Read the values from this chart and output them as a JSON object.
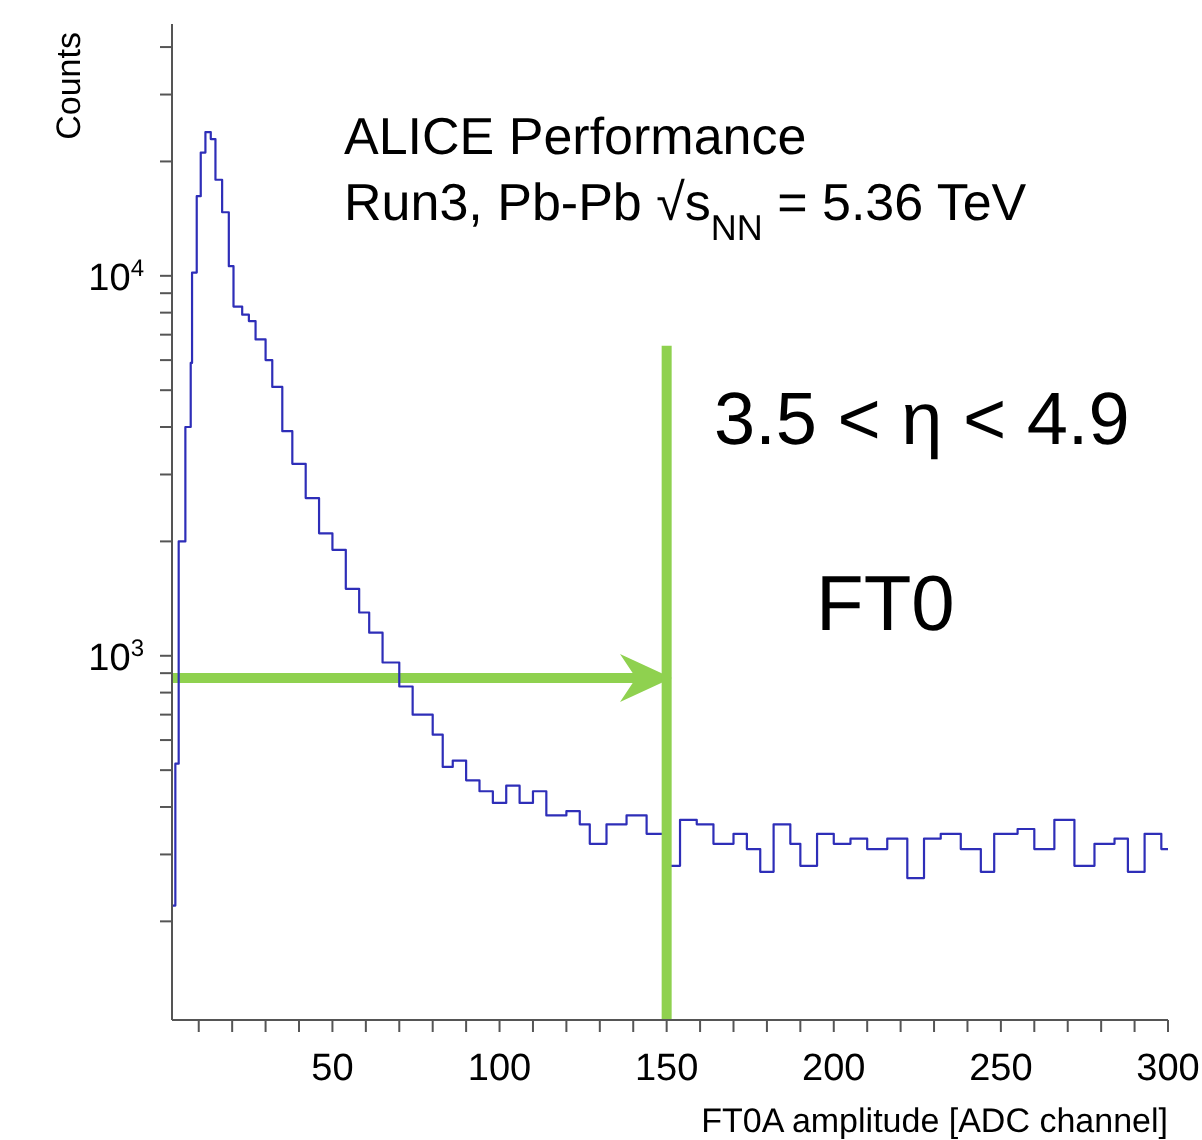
{
  "chart_data": {
    "type": "histogram",
    "xlabel": "FT0A amplitude [ADC channel]",
    "ylabel": "Counts",
    "annotations": [
      "ALICE Performance",
      "Run3, Pb-Pb √s$_{NN}$ = 5.36 TeV",
      "3.5 < η < 4.9",
      "FT0"
    ],
    "color": "#2e2eb8",
    "log": "y",
    "legend": false,
    "grid": false,
    "bins": [
      2,
      3,
      4,
      6,
      7.6,
      8,
      9.4,
      10.6,
      12,
      13.6,
      15,
      17,
      19,
      20.4,
      23,
      25,
      27,
      30,
      32,
      35,
      38,
      42,
      46,
      50,
      54,
      58,
      61,
      65,
      70,
      74,
      80,
      83,
      86,
      90,
      94,
      98,
      102,
      106,
      110,
      114,
      120,
      124,
      127,
      132,
      138,
      144,
      149,
      154,
      159,
      164,
      170,
      174,
      178,
      182,
      187,
      190,
      195,
      200,
      205,
      210,
      216,
      222,
      227,
      232,
      238,
      244,
      248,
      255,
      260,
      266,
      272,
      278,
      284,
      288,
      293,
      298,
      300
    ],
    "values": [
      220,
      520,
      2000,
      4000,
      5900,
      10200,
      16200,
      21100,
      23900,
      22900,
      17900,
      14700,
      10600,
      8300,
      7900,
      7600,
      6800,
      6000,
      5100,
      3900,
      3200,
      2600,
      2100,
      1900,
      1500,
      1300,
      1150,
      960,
      830,
      700,
      620,
      510,
      530,
      470,
      440,
      410,
      455,
      410,
      440,
      380,
      390,
      360,
      320,
      360,
      380,
      340,
      280,
      370,
      360,
      320,
      340,
      310,
      270,
      360,
      320,
      280,
      340,
      320,
      330,
      310,
      330,
      260,
      330,
      340,
      310,
      270,
      340,
      350,
      310,
      370,
      280,
      320,
      330,
      270,
      340,
      310
    ],
    "xlim": [
      2,
      300
    ],
    "xticks": [
      {
        "value": 10,
        "label": null
      },
      {
        "value": 20,
        "label": null
      },
      {
        "value": 30,
        "label": null
      },
      {
        "value": 40,
        "label": null
      },
      50,
      {
        "value": 60,
        "label": null
      },
      {
        "value": 70,
        "label": null
      },
      {
        "value": 80,
        "label": null
      },
      {
        "value": 90,
        "label": null
      },
      100,
      {
        "value": 110,
        "label": null
      },
      {
        "value": 120,
        "label": null
      },
      {
        "value": 130,
        "label": null
      },
      {
        "value": 140,
        "label": null
      },
      150,
      {
        "value": 160,
        "label": null
      },
      {
        "value": 170,
        "label": null
      },
      {
        "value": 180,
        "label": null
      },
      {
        "value": 190,
        "label": null
      },
      200,
      {
        "value": 210,
        "label": null
      },
      {
        "value": 220,
        "label": null
      },
      {
        "value": 230,
        "label": null
      },
      {
        "value": 240,
        "label": null
      },
      250,
      {
        "value": 260,
        "label": null
      },
      {
        "value": 270,
        "label": null
      },
      {
        "value": 280,
        "label": null
      },
      {
        "value": 290,
        "label": null
      },
      300
    ],
    "ylim": [
      110,
      46000
    ],
    "yticks": [
      {
        "value": 200,
        "label": null
      },
      {
        "value": 300,
        "label": null
      },
      {
        "value": 400,
        "label": null
      },
      {
        "value": 500,
        "label": null
      },
      {
        "value": 600,
        "label": null
      },
      {
        "value": 700,
        "label": null
      },
      {
        "value": 800,
        "label": null
      },
      {
        "value": 900,
        "label": null
      },
      {
        "value": 1000,
        "label": "10$^{3}$"
      },
      {
        "value": 2000,
        "label": null
      },
      {
        "value": 3000,
        "label": null
      },
      {
        "value": 4000,
        "label": null
      },
      {
        "value": 5000,
        "label": null
      },
      {
        "value": 6000,
        "label": null
      },
      {
        "value": 7000,
        "label": null
      },
      {
        "value": 8000,
        "label": null
      },
      {
        "value": 9000,
        "label": null
      },
      {
        "value": 10000,
        "label": "10$^{4}$"
      },
      {
        "value": 20000,
        "label": null
      },
      {
        "value": 30000,
        "label": null
      },
      {
        "value": 40000,
        "label": null
      }
    ],
    "ref_lines": [
      {
        "axis": "x",
        "value": 150,
        "color": "#8fd14f"
      }
    ]
  }
}
